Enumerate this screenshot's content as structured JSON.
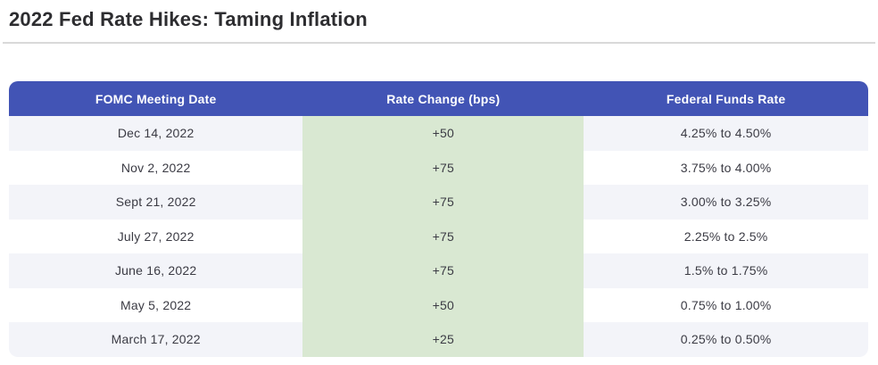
{
  "page": {
    "title": "2022 Fed Rate Hikes: Taming Inflation"
  },
  "colors": {
    "title_text": "#2d2d30",
    "divider": "#d9d9d9",
    "header_bg": "#4254b5",
    "header_text": "#ffffff",
    "highlight_col_bg": "#d9e8d2",
    "row_bg": "#ffffff",
    "row_alt_bg": "#f3f4f9",
    "body_text": "#3b3b44"
  },
  "table": {
    "headers": [
      "FOMC Meeting Date",
      "Rate Change (bps)",
      "Federal Funds Rate"
    ],
    "rows": [
      {
        "date": "Dec 14, 2022",
        "change": "+50",
        "rate": "4.25% to 4.50%"
      },
      {
        "date": "Nov 2, 2022",
        "change": "+75",
        "rate": "3.75% to 4.00%"
      },
      {
        "date": "Sept 21, 2022",
        "change": "+75",
        "rate": "3.00% to 3.25%"
      },
      {
        "date": "July 27, 2022",
        "change": "+75",
        "rate": "2.25% to 2.5%"
      },
      {
        "date": "June 16, 2022",
        "change": "+75",
        "rate": "1.5% to 1.75%"
      },
      {
        "date": "May 5, 2022",
        "change": "+50",
        "rate": "0.75% to 1.00%"
      },
      {
        "date": "March 17, 2022",
        "change": "+25",
        "rate": "0.25% to 0.50%"
      }
    ]
  },
  "chart_data": {
    "type": "table",
    "title": "2022 Fed Rate Hikes: Taming Inflation",
    "columns": [
      "FOMC Meeting Date",
      "Rate Change (bps)",
      "Federal Funds Rate"
    ],
    "rows": [
      [
        "Dec 14, 2022",
        "+50",
        "4.25% to 4.50%"
      ],
      [
        "Nov 2, 2022",
        "+75",
        "3.75% to 4.00%"
      ],
      [
        "Sept 21, 2022",
        "+75",
        "3.00% to 3.25%"
      ],
      [
        "July 27, 2022",
        "+75",
        "2.25% to 2.5%"
      ],
      [
        "June 16, 2022",
        "+75",
        "1.5% to 1.75%"
      ],
      [
        "May 5, 2022",
        "+50",
        "0.75% to 1.00%"
      ],
      [
        "March 17, 2022",
        "+25",
        "0.25% to 0.50%"
      ]
    ],
    "rate_change_bps": [
      50,
      75,
      75,
      75,
      75,
      50,
      25
    ],
    "highlighted_column": "Rate Change (bps)"
  }
}
